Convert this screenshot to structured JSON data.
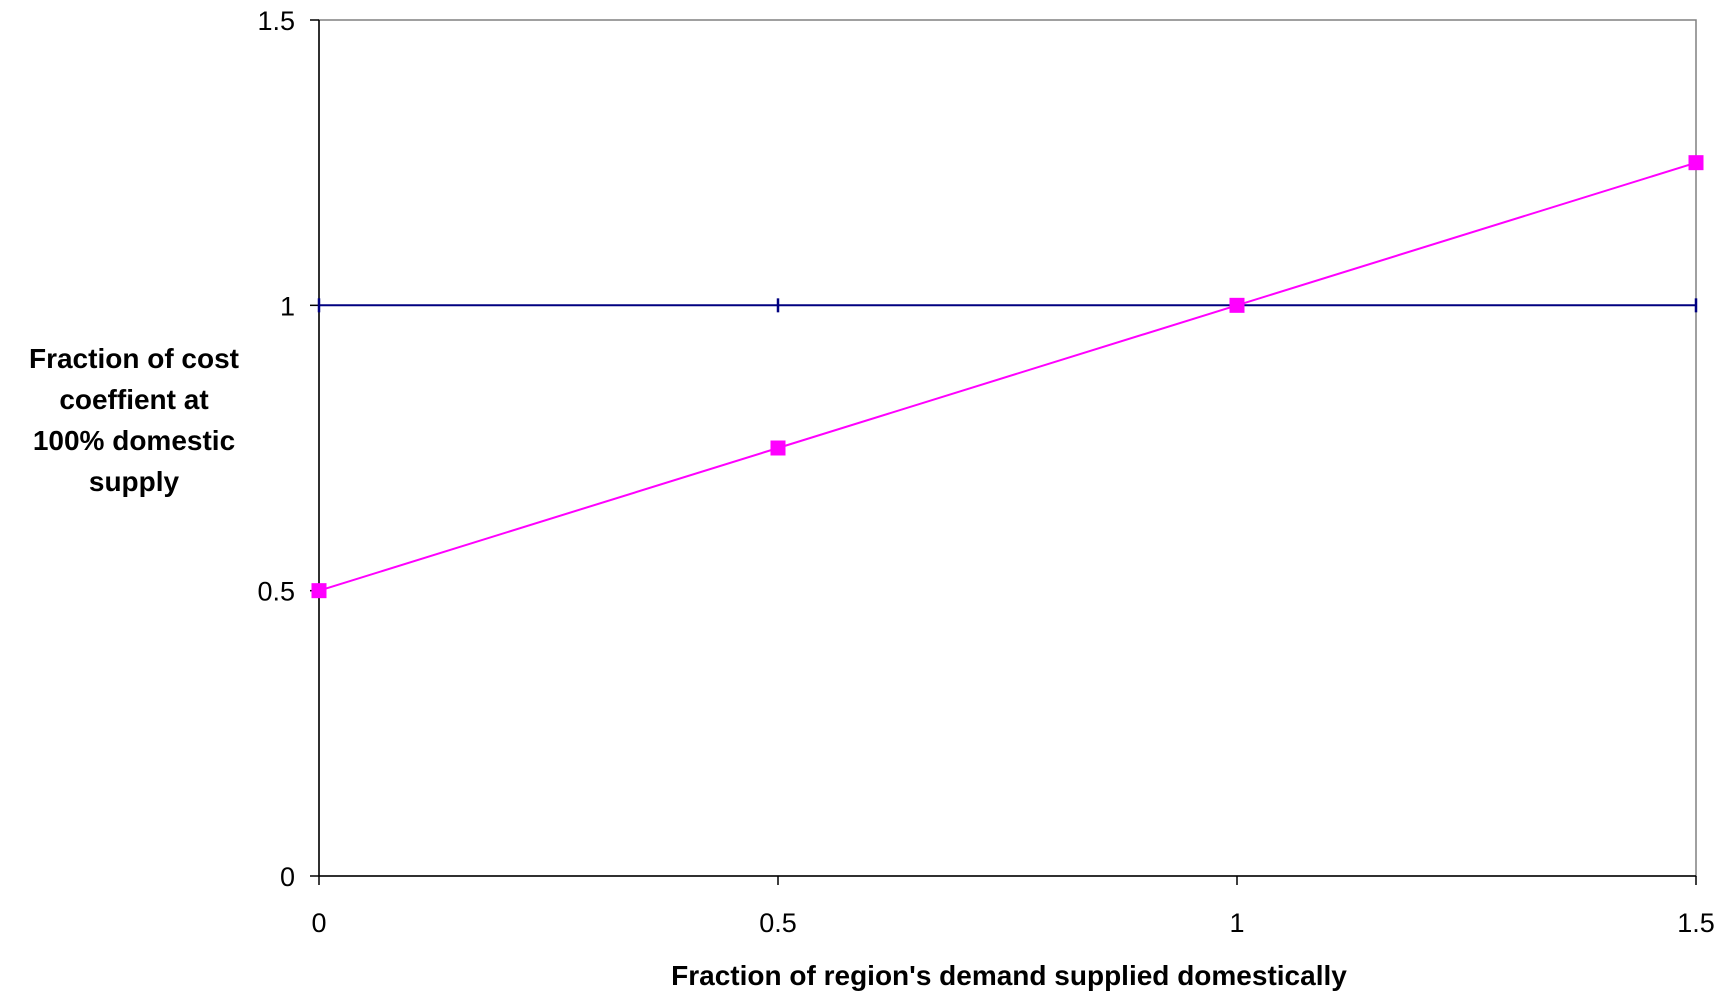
{
  "chart_data": {
    "type": "line",
    "title": "",
    "xlabel": "Fraction of region's demand supplied domestically",
    "ylabel_lines": [
      "Fraction of cost",
      "coeffient at",
      "100% domestic",
      "supply"
    ],
    "xlim": [
      0,
      1.5
    ],
    "ylim": [
      0,
      1.5
    ],
    "x_ticks": [
      0,
      0.5,
      1,
      1.5
    ],
    "y_ticks": [
      0,
      0.5,
      1,
      1.5
    ],
    "x_tick_labels": [
      "0",
      "0.5",
      "1",
      "1.5"
    ],
    "y_tick_labels": [
      "0",
      "0.5",
      "1",
      "1.5"
    ],
    "grid": false,
    "legend": "none",
    "series": [
      {
        "x": [
          0,
          0.5,
          1,
          1.5
        ],
        "y": [
          1,
          1,
          1,
          1
        ],
        "color": "#000080",
        "marker": "tick"
      },
      {
        "x": [
          0,
          0.5,
          1,
          1.5
        ],
        "y": [
          0.5,
          0.75,
          1,
          1.25
        ],
        "color": "#FF00FF",
        "marker": "square"
      }
    ]
  }
}
